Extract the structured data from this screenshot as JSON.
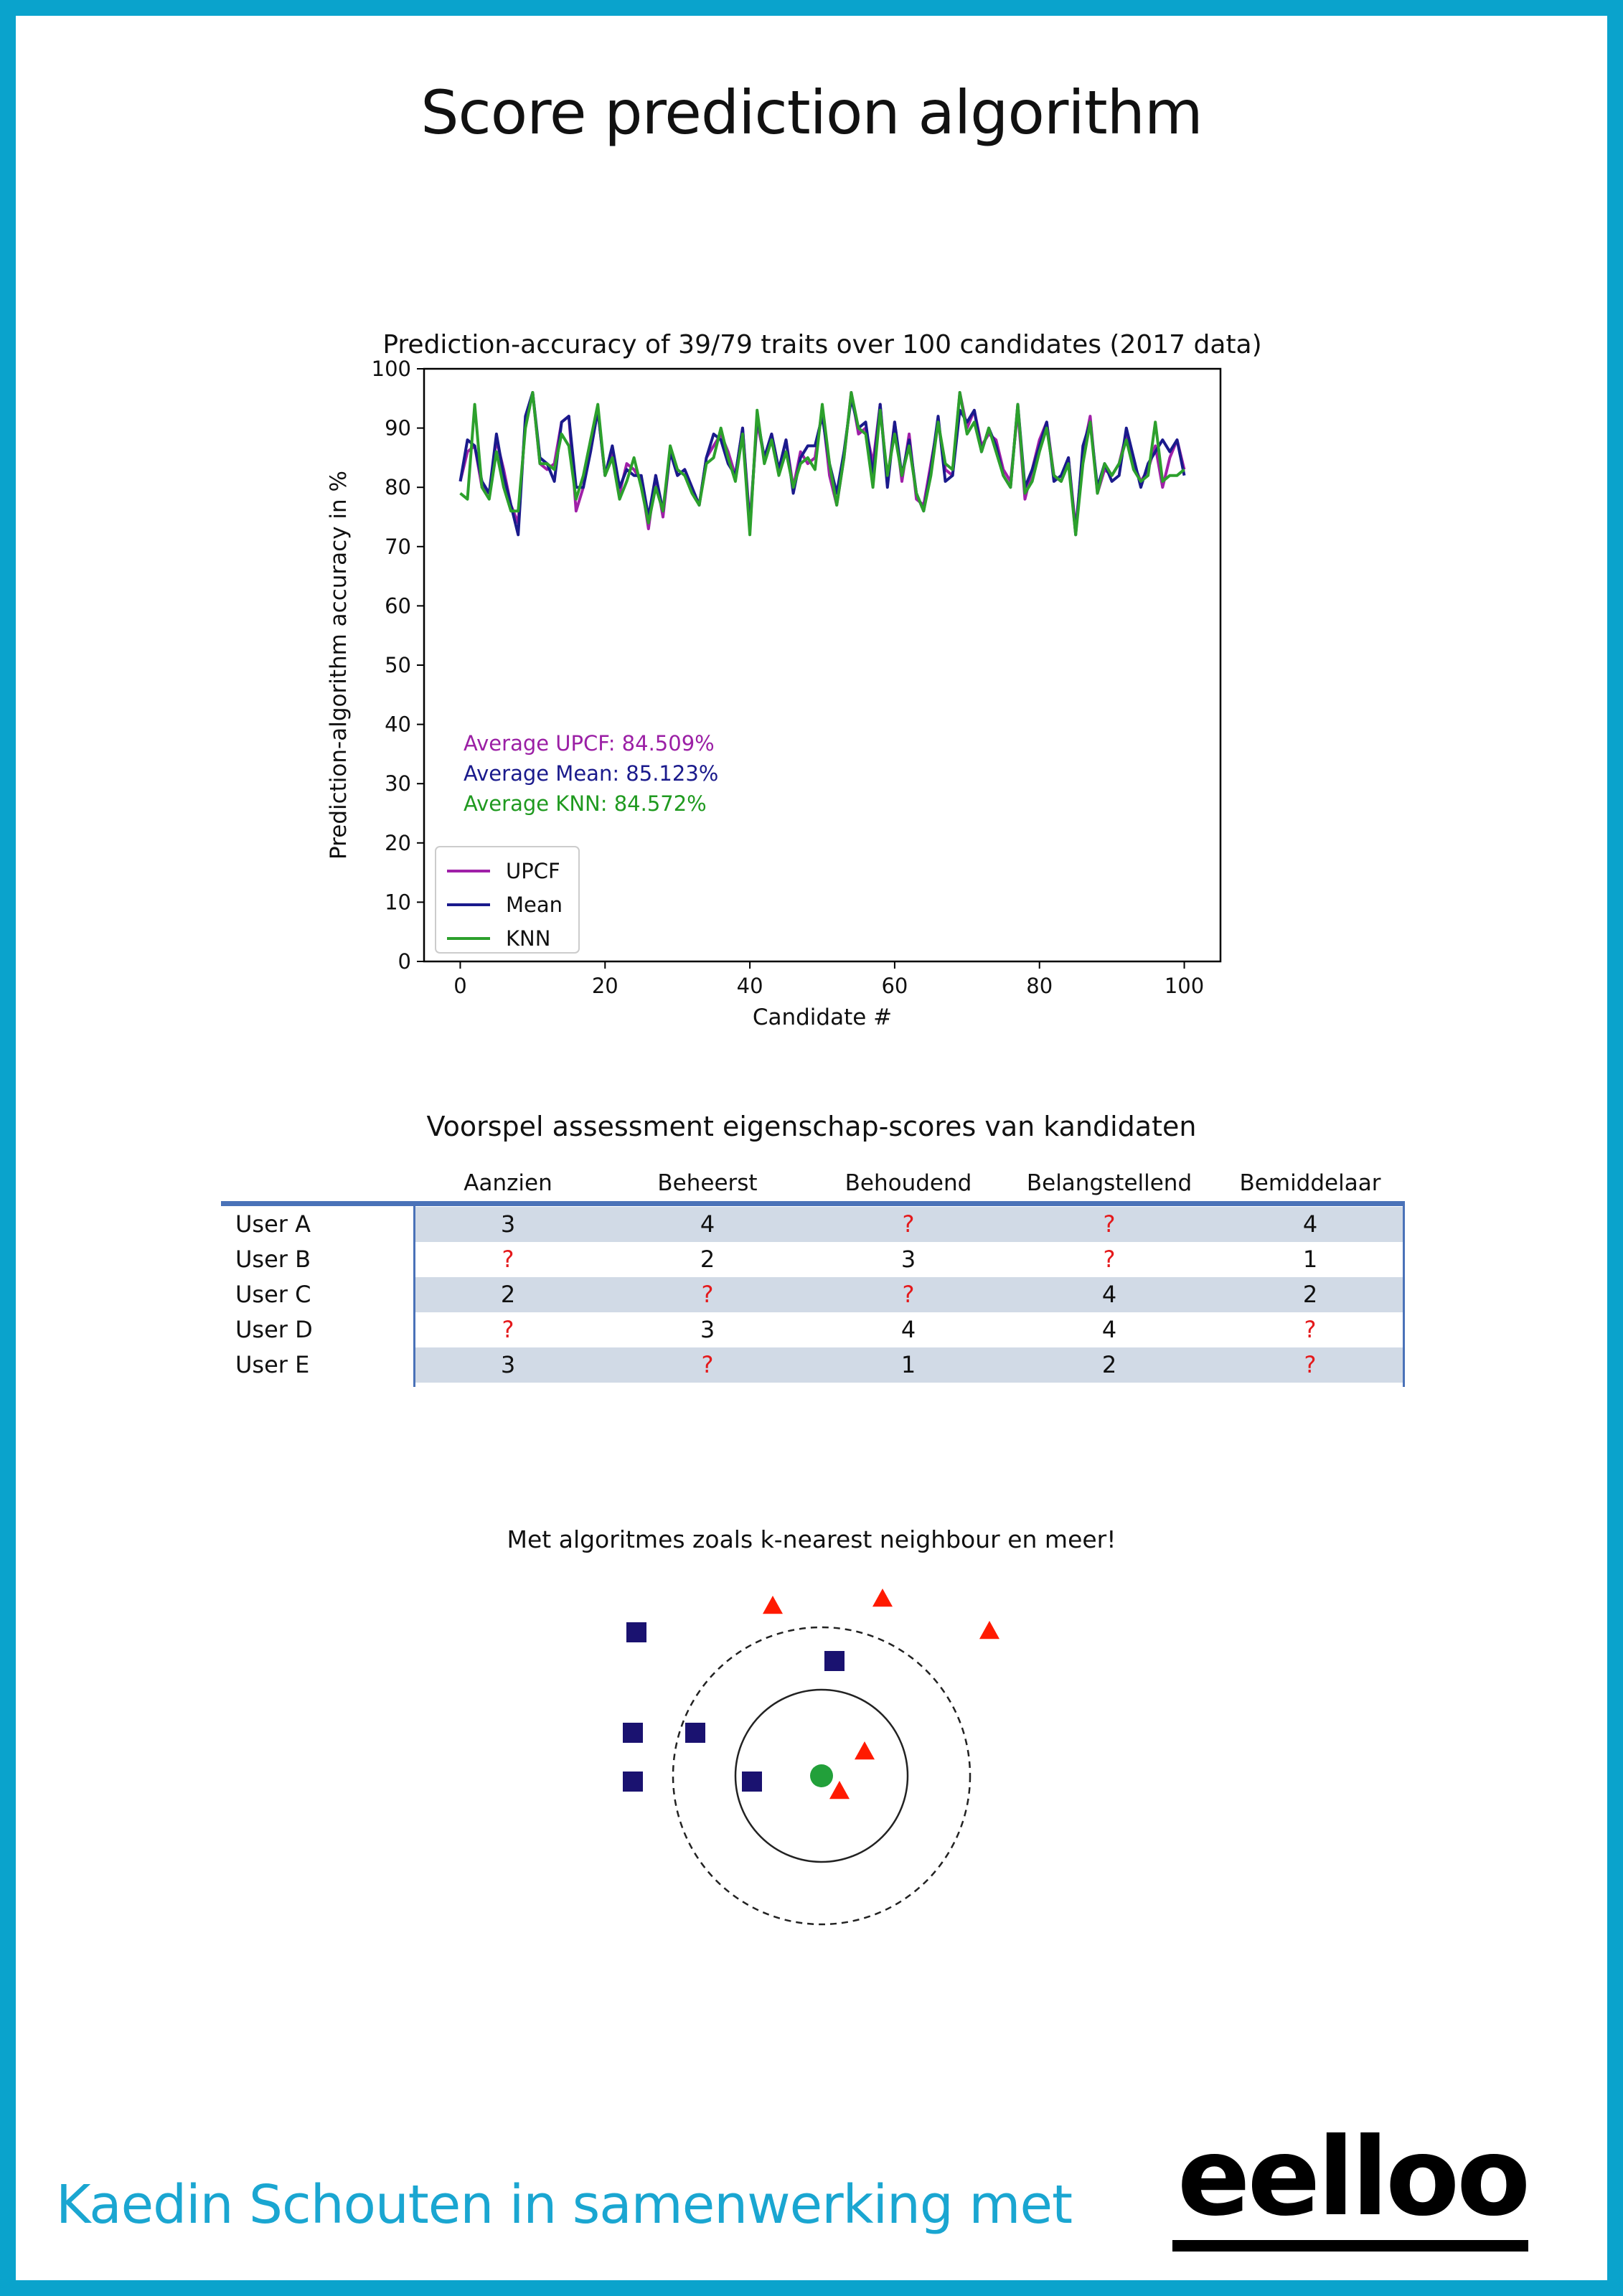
{
  "page": {
    "title": "Score prediction algorithm",
    "footer": "Kaedin Schouten in samenwerking met",
    "logo": "eelloo",
    "border_color": "#0aa3cc",
    "footer_color": "#1aa6d1"
  },
  "chart_data": {
    "type": "line",
    "title": "Prediction-accuracy of 39/79 traits over 100 candidates (2017 data)",
    "xlabel": "Candidate #",
    "ylabel": "Prediction-algorithm accuracy in %",
    "xlim": [
      -5,
      105
    ],
    "ylim": [
      0,
      100
    ],
    "xticks": [
      0,
      20,
      40,
      60,
      80,
      100
    ],
    "yticks": [
      0,
      10,
      20,
      30,
      40,
      50,
      60,
      70,
      80,
      90,
      100
    ],
    "grid": false,
    "legend": "lower-left",
    "annotations": [
      {
        "text": "Average UPCF: 84.509%",
        "color": "#9b1fa5"
      },
      {
        "text": "Average Mean: 85.123%",
        "color": "#1a1a8c"
      },
      {
        "text": "Average KNN: 84.572%",
        "color": "#1f9a1f"
      }
    ],
    "series": [
      {
        "name": "UPCF",
        "color": "#a020a8",
        "values": [
          81,
          86,
          87,
          80,
          79,
          88,
          83,
          77,
          74,
          91,
          96,
          84,
          83,
          84,
          91,
          92,
          76,
          80,
          88,
          93,
          82,
          86,
          79,
          84,
          83,
          81,
          73,
          82,
          75,
          86,
          82,
          83,
          80,
          77,
          85,
          87,
          89,
          86,
          82,
          90,
          74,
          91,
          85,
          89,
          83,
          88,
          80,
          86,
          84,
          85,
          93,
          82,
          77,
          85,
          96,
          89,
          90,
          84,
          94,
          81,
          91,
          81,
          89,
          78,
          77,
          84,
          91,
          83,
          82,
          96,
          90,
          93,
          87,
          89,
          88,
          83,
          81,
          93,
          78,
          83,
          88,
          91,
          82,
          81,
          85,
          73,
          86,
          92,
          79,
          83,
          82,
          84,
          89,
          84,
          81,
          83,
          87,
          80,
          85,
          88,
          83
        ]
      },
      {
        "name": "Mean",
        "color": "#1a1a8c",
        "values": [
          81,
          88,
          87,
          81,
          79,
          89,
          82,
          77,
          72,
          92,
          96,
          85,
          84,
          81,
          91,
          92,
          80,
          80,
          86,
          93,
          82,
          87,
          80,
          83,
          82,
          82,
          75,
          82,
          76,
          86,
          82,
          83,
          80,
          77,
          85,
          89,
          88,
          84,
          82,
          90,
          73,
          92,
          85,
          89,
          83,
          88,
          79,
          85,
          87,
          87,
          92,
          84,
          79,
          86,
          95,
          90,
          91,
          82,
          94,
          80,
          91,
          82,
          88,
          79,
          76,
          83,
          92,
          81,
          82,
          93,
          91,
          93,
          86,
          90,
          87,
          82,
          80,
          94,
          80,
          83,
          87,
          91,
          81,
          82,
          85,
          72,
          87,
          91,
          80,
          84,
          81,
          82,
          90,
          85,
          80,
          84,
          86,
          88,
          86,
          88,
          82
        ]
      },
      {
        "name": "KNN",
        "color": "#2ca02c",
        "values": [
          79,
          78,
          94,
          80,
          78,
          86,
          80,
          76,
          76,
          90,
          96,
          84,
          84,
          83,
          89,
          87,
          78,
          82,
          88,
          94,
          82,
          85,
          78,
          81,
          85,
          80,
          74,
          80,
          76,
          87,
          83,
          82,
          79,
          77,
          84,
          85,
          90,
          85,
          81,
          89,
          72,
          93,
          84,
          88,
          82,
          86,
          80,
          84,
          85,
          83,
          94,
          84,
          77,
          85,
          96,
          90,
          89,
          80,
          93,
          82,
          89,
          82,
          87,
          79,
          76,
          82,
          91,
          84,
          83,
          96,
          89,
          91,
          86,
          90,
          86,
          82,
          80,
          94,
          79,
          81,
          86,
          90,
          82,
          81,
          84,
          72,
          84,
          91,
          79,
          84,
          82,
          84,
          88,
          83,
          81,
          82,
          91,
          81,
          82,
          82,
          83
        ]
      }
    ]
  },
  "table": {
    "title": "Voorspel assessment eigenschap-scores van kandidaten",
    "columns": [
      "Aanzien",
      "Beheerst",
      "Behoudend",
      "Belangstellend",
      "Bemiddelaar"
    ],
    "unknown_color": "#e41a1c",
    "rows": [
      {
        "user": "User A",
        "values": [
          "3",
          "4",
          "?",
          "?",
          "4"
        ]
      },
      {
        "user": "User B",
        "values": [
          "?",
          "2",
          "3",
          "?",
          "1"
        ]
      },
      {
        "user": "User C",
        "values": [
          "2",
          "?",
          "?",
          "4",
          "2"
        ]
      },
      {
        "user": "User D",
        "values": [
          "?",
          "3",
          "4",
          "4",
          "?"
        ]
      },
      {
        "user": "User E",
        "values": [
          "3",
          "?",
          "1",
          "2",
          "?"
        ]
      }
    ]
  },
  "knn": {
    "caption": "Met algoritmes zoals k-nearest neighbour en meer!",
    "square_color": "#1a1270",
    "triangle_color": "#ff1a00",
    "query_color": "#22a03a"
  }
}
